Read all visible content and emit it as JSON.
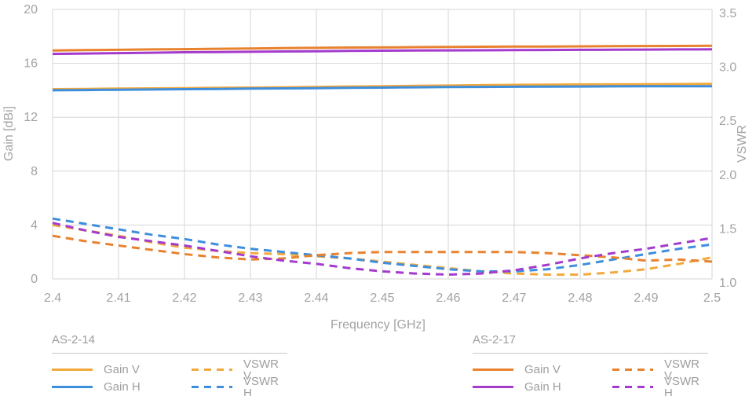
{
  "chart_data": {
    "type": "line",
    "title": "",
    "xlabel": "Frequency [GHz]",
    "ylabel_left": "Gain [dBi]",
    "ylabel_right": "VSWR",
    "grid": true,
    "grid_color": "#d6d6d6",
    "tick_color": "#a3a3a3",
    "x_range": [
      2.4,
      2.5
    ],
    "gain_range": [
      0,
      20
    ],
    "vswr_range": [
      1.0,
      3.5
    ],
    "x_ticks": [
      {
        "v": 2.4,
        "label": "2.4"
      },
      {
        "v": 2.41,
        "label": "2.41"
      },
      {
        "v": 2.42,
        "label": "2.42"
      },
      {
        "v": 2.43,
        "label": "2.43"
      },
      {
        "v": 2.44,
        "label": "2.44"
      },
      {
        "v": 2.45,
        "label": "2.45"
      },
      {
        "v": 2.46,
        "label": "2.46"
      },
      {
        "v": 2.47,
        "label": "2.47"
      },
      {
        "v": 2.48,
        "label": "2.48"
      },
      {
        "v": 2.49,
        "label": "2.49"
      },
      {
        "v": 2.5,
        "label": "2.5"
      }
    ],
    "gain_ticks": [
      {
        "v": 20,
        "label": "20"
      },
      {
        "v": 16,
        "label": "16"
      },
      {
        "v": 12,
        "label": "12"
      },
      {
        "v": 8,
        "label": "8"
      },
      {
        "v": 4,
        "label": "4"
      },
      {
        "v": 0,
        "label": "0"
      }
    ],
    "vswr_ticks": [
      {
        "v": 3.5,
        "label": "3.5"
      },
      {
        "v": 3.0,
        "label": "3.0"
      },
      {
        "v": 2.5,
        "label": "2.5"
      },
      {
        "v": 2.0,
        "label": "2.0"
      },
      {
        "v": 1.5,
        "label": "1.5"
      },
      {
        "v": 1.0,
        "label": "1.0"
      }
    ],
    "x": [
      2.4,
      2.405,
      2.41,
      2.415,
      2.42,
      2.425,
      2.43,
      2.435,
      2.44,
      2.445,
      2.45,
      2.455,
      2.46,
      2.465,
      2.47,
      2.475,
      2.48,
      2.485,
      2.49,
      2.495,
      2.5
    ],
    "series": [
      {
        "group": "AS-2-14",
        "label": "Gain V",
        "axis": "gain",
        "style": "solid",
        "color": "#f2a93c",
        "values": [
          14.08,
          14.1,
          14.12,
          14.14,
          14.16,
          14.18,
          14.2,
          14.22,
          14.25,
          14.28,
          14.3,
          14.33,
          14.35,
          14.38,
          14.4,
          14.42,
          14.43,
          14.44,
          14.45,
          14.46,
          14.47
        ]
      },
      {
        "group": "AS-2-14",
        "label": "Gain H",
        "axis": "gain",
        "style": "solid",
        "color": "#3e8ede",
        "values": [
          14.0,
          14.02,
          14.04,
          14.06,
          14.08,
          14.1,
          14.12,
          14.14,
          14.16,
          14.18,
          14.2,
          14.22,
          14.24,
          14.25,
          14.26,
          14.27,
          14.28,
          14.29,
          14.3,
          14.3,
          14.3
        ]
      },
      {
        "group": "AS-2-14",
        "label": "VSWR V",
        "axis": "vswr",
        "style": "dashed",
        "color": "#f2a93c",
        "values": [
          1.5,
          1.45,
          1.4,
          1.34,
          1.29,
          1.26,
          1.24,
          1.23,
          1.21,
          1.19,
          1.16,
          1.13,
          1.1,
          1.07,
          1.05,
          1.04,
          1.04,
          1.06,
          1.09,
          1.14,
          1.2
        ]
      },
      {
        "group": "AS-2-14",
        "label": "VSWR H",
        "axis": "vswr",
        "style": "dashed",
        "color": "#3e8ede",
        "values": [
          1.56,
          1.51,
          1.46,
          1.41,
          1.37,
          1.32,
          1.28,
          1.25,
          1.22,
          1.19,
          1.15,
          1.12,
          1.09,
          1.07,
          1.07,
          1.09,
          1.13,
          1.18,
          1.23,
          1.28,
          1.32
        ]
      },
      {
        "group": "AS-2-17",
        "label": "Gain V",
        "axis": "gain",
        "style": "solid",
        "color": "#e8822f",
        "values": [
          16.95,
          16.98,
          17.0,
          17.03,
          17.05,
          17.08,
          17.1,
          17.13,
          17.15,
          17.17,
          17.18,
          17.2,
          17.21,
          17.23,
          17.24,
          17.25,
          17.26,
          17.27,
          17.28,
          17.29,
          17.3
        ]
      },
      {
        "group": "AS-2-17",
        "label": "Gain H",
        "axis": "gain",
        "style": "solid",
        "color": "#a43bcd",
        "values": [
          16.7,
          16.73,
          16.76,
          16.79,
          16.82,
          16.84,
          16.86,
          16.88,
          16.9,
          16.92,
          16.94,
          16.95,
          16.96,
          16.97,
          16.98,
          16.99,
          17.0,
          17.01,
          17.02,
          17.03,
          17.04
        ]
      },
      {
        "group": "AS-2-17",
        "label": "VSWR V",
        "axis": "vswr",
        "style": "dashed",
        "color": "#e8822f",
        "values": [
          1.4,
          1.35,
          1.31,
          1.27,
          1.23,
          1.2,
          1.18,
          1.19,
          1.22,
          1.24,
          1.25,
          1.25,
          1.25,
          1.25,
          1.25,
          1.24,
          1.22,
          1.2,
          1.17,
          1.18,
          1.16
        ]
      },
      {
        "group": "AS-2-17",
        "label": "VSWR H",
        "axis": "vswr",
        "style": "dashed",
        "color": "#a43bcd",
        "values": [
          1.52,
          1.45,
          1.39,
          1.35,
          1.31,
          1.26,
          1.21,
          1.17,
          1.14,
          1.1,
          1.07,
          1.05,
          1.04,
          1.05,
          1.08,
          1.13,
          1.19,
          1.24,
          1.28,
          1.33,
          1.38
        ]
      }
    ]
  },
  "legend": {
    "groups": [
      {
        "title": "AS-2-14",
        "items": [
          {
            "label": "Gain V",
            "style": "solid",
            "color": "#f2a93c"
          },
          {
            "label": "VSWR V",
            "style": "dashed",
            "color": "#f2a93c"
          },
          {
            "label": "Gain H",
            "style": "solid",
            "color": "#3e8ede"
          },
          {
            "label": "VSWR H",
            "style": "dashed",
            "color": "#3e8ede"
          }
        ]
      },
      {
        "title": "AS-2-17",
        "items": [
          {
            "label": "Gain V",
            "style": "solid",
            "color": "#e8822f"
          },
          {
            "label": "VSWR V",
            "style": "dashed",
            "color": "#e8822f"
          },
          {
            "label": "Gain H",
            "style": "solid",
            "color": "#a43bcd"
          },
          {
            "label": "VSWR H",
            "style": "dashed",
            "color": "#a43bcd"
          }
        ]
      }
    ]
  }
}
